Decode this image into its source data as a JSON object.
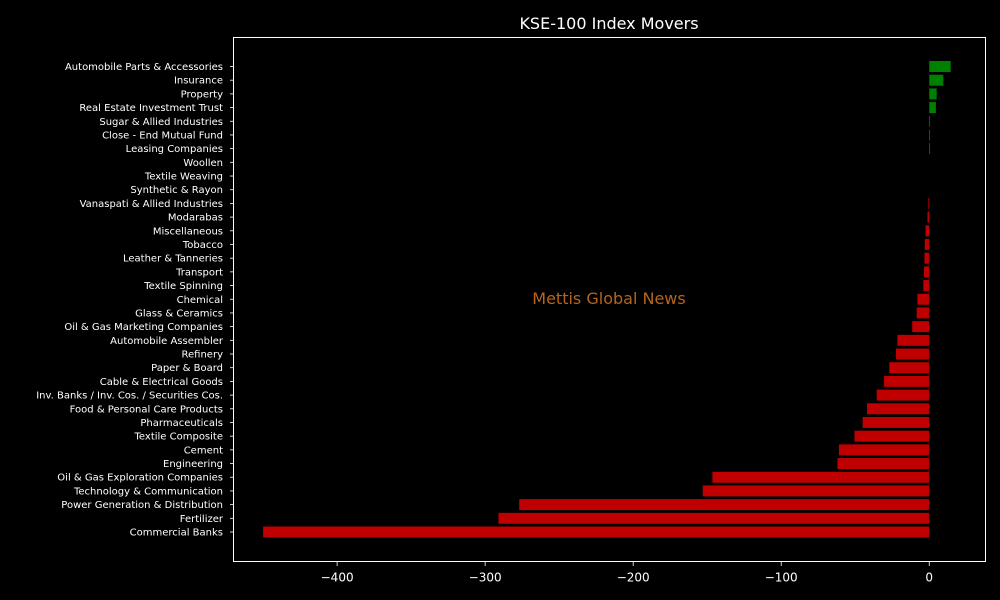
{
  "chart_data": {
    "type": "bar",
    "orientation": "horizontal",
    "title": "KSE-100 Index Movers",
    "xlabel": "",
    "ylabel": "",
    "xlim": [
      -470,
      38
    ],
    "x_ticks": [
      -400,
      -300,
      -200,
      -100,
      0
    ],
    "x_tick_labels": [
      "−400",
      "−300",
      "−200",
      "−100",
      "0"
    ],
    "grid": false,
    "watermark": "Mettis Global News",
    "colors": {
      "background": "#000000",
      "axes": "#ffffff",
      "text": "#ffffff",
      "positive": "#008000",
      "negative": "#c00000",
      "watermark": "#b5651d"
    },
    "categories": [
      "Automobile Parts & Accessories",
      "Insurance",
      "Property",
      "Real Estate Investment Trust",
      "Sugar & Allied Industries",
      "Close - End Mutual Fund",
      "Leasing Companies",
      "Woollen",
      "Textile Weaving",
      "Synthetic & Rayon",
      "Vanaspati & Allied Industries",
      "Modarabas",
      "Miscellaneous",
      "Tobacco",
      "Leather & Tanneries",
      "Transport",
      "Textile Spinning",
      "Chemical",
      "Glass & Ceramics",
      "Oil & Gas Marketing Companies",
      "Automobile Assembler",
      "Refinery",
      "Paper & Board",
      "Cable & Electrical Goods",
      "Inv. Banks / Inv. Cos. / Securities Cos.",
      "Food & Personal Care Products",
      "Pharmaceuticals",
      "Textile Composite",
      "Cement",
      "Engineering",
      "Oil & Gas Exploration Companies",
      "Technology & Communication",
      "Power Generation & Distribution",
      "Fertilizer",
      "Commercial Banks"
    ],
    "values": [
      14.5,
      9.5,
      5.0,
      4.5,
      0.3,
      0.2,
      0.2,
      0.0,
      0.0,
      0.0,
      -0.6,
      -1.2,
      -2.5,
      -3.0,
      -3.2,
      -3.5,
      -4.0,
      -8.0,
      -8.5,
      -11.5,
      -21.5,
      -22.5,
      -27.0,
      -30.5,
      -35.5,
      -42.0,
      -45.0,
      -50.5,
      -61.0,
      -62.0,
      -146.5,
      -153.0,
      -277.0,
      -291.0,
      -450.0
    ]
  }
}
